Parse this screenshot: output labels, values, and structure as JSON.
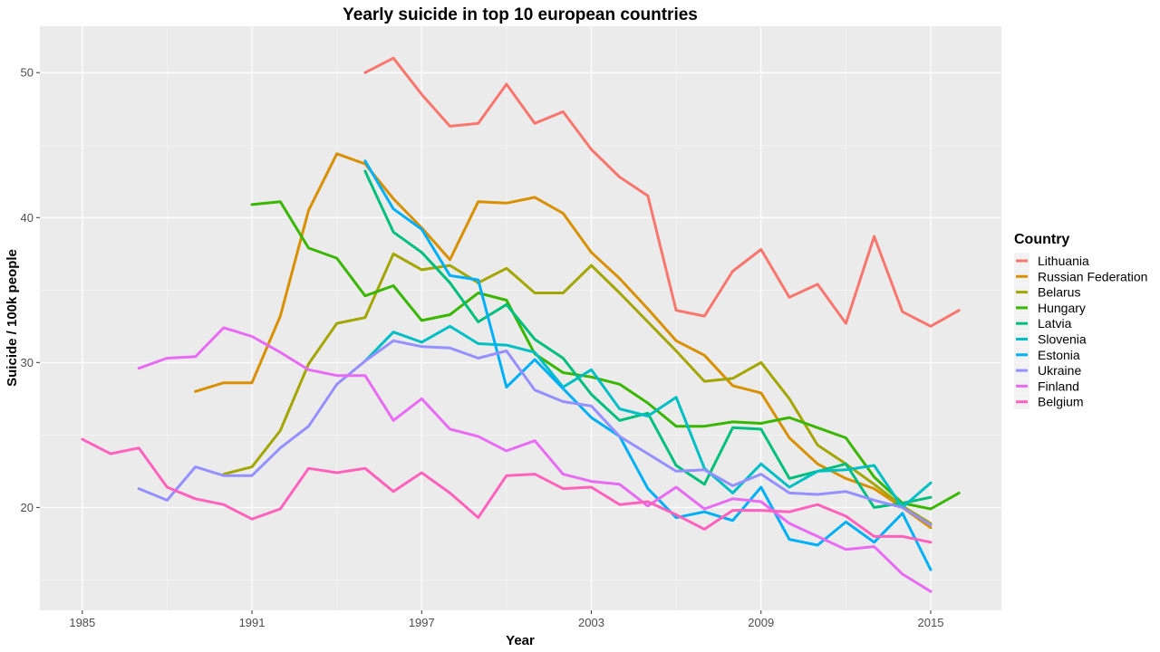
{
  "chart_data": {
    "type": "line",
    "title": "Yearly suicide in top 10 european countries",
    "xlabel": "Year",
    "ylabel": "Suicide / 100k people",
    "xlim": [
      1983.5,
      2017.5
    ],
    "ylim": [
      12.9,
      53.2
    ],
    "x_ticks": [
      1985,
      1991,
      1997,
      2003,
      2009,
      2015
    ],
    "y_ticks": [
      20,
      30,
      40,
      50
    ],
    "grid": true,
    "legend": {
      "title": "Country",
      "position": "right"
    },
    "series": [
      {
        "name": "Lithuania",
        "color": "#F8766D",
        "x": [
          1995,
          1996,
          1997,
          1998,
          1999,
          2000,
          2001,
          2002,
          2003,
          2004,
          2005,
          2006,
          2007,
          2008,
          2009,
          2010,
          2011,
          2012,
          2013,
          2014,
          2015,
          2016
        ],
        "y": [
          50.0,
          51.0,
          48.5,
          46.3,
          46.5,
          49.2,
          46.5,
          47.3,
          44.7,
          42.8,
          41.5,
          33.6,
          33.2,
          36.3,
          37.8,
          34.5,
          35.4,
          32.7,
          38.7,
          33.5,
          32.5,
          33.6
        ]
      },
      {
        "name": "Russian Federation",
        "color": "#D89000",
        "x": [
          1989,
          1990,
          1991,
          1992,
          1993,
          1994,
          1995,
          1996,
          1997,
          1998,
          1999,
          2000,
          2001,
          2002,
          2003,
          2004,
          2005,
          2006,
          2007,
          2008,
          2009,
          2010,
          2011,
          2012,
          2013,
          2014,
          2015
        ],
        "y": [
          28.0,
          28.6,
          28.6,
          33.2,
          40.5,
          44.4,
          43.7,
          41.3,
          39.3,
          37.1,
          41.1,
          41.0,
          41.4,
          40.3,
          37.6,
          35.8,
          33.7,
          31.5,
          30.5,
          28.4,
          27.9,
          24.8,
          23.0,
          22.0,
          21.3,
          20.0,
          18.6
        ]
      },
      {
        "name": "Belarus",
        "color": "#A3A500",
        "x": [
          1990,
          1991,
          1992,
          1993,
          1994,
          1995,
          1996,
          1997,
          1998,
          1999,
          2000,
          2001,
          2002,
          2003,
          2004,
          2005,
          2006,
          2007,
          2008,
          2009,
          2010,
          2011,
          2012,
          2013,
          2014,
          2015
        ],
        "y": [
          22.3,
          22.8,
          25.3,
          29.9,
          32.7,
          33.1,
          37.5,
          36.4,
          36.7,
          35.5,
          36.5,
          34.8,
          34.8,
          36.7,
          34.8,
          32.8,
          30.8,
          28.7,
          28.9,
          30.0,
          27.5,
          24.3,
          23.0,
          21.6,
          20.1,
          18.9
        ]
      },
      {
        "name": "Hungary",
        "color": "#39B600",
        "x": [
          1991,
          1992,
          1993,
          1994,
          1995,
          1996,
          1997,
          1998,
          1999,
          2000,
          2001,
          2002,
          2003,
          2004,
          2005,
          2006,
          2007,
          2008,
          2009,
          2010,
          2011,
          2012,
          2013,
          2014,
          2015,
          2016
        ],
        "y": [
          40.9,
          41.1,
          37.9,
          37.2,
          34.6,
          35.3,
          32.9,
          33.3,
          34.8,
          34.3,
          30.6,
          29.3,
          29.0,
          28.5,
          27.2,
          25.6,
          25.6,
          25.9,
          25.8,
          26.2,
          25.5,
          24.8,
          22.1,
          20.3,
          19.9,
          21.0
        ]
      },
      {
        "name": "Latvia",
        "color": "#00BF7D",
        "x": [
          1995,
          1996,
          1997,
          1998,
          1999,
          2000,
          2001,
          2002,
          2003,
          2004,
          2005,
          2006,
          2007,
          2008,
          2009,
          2010,
          2011,
          2012,
          2013,
          2014,
          2015
        ],
        "y": [
          43.2,
          39.0,
          37.6,
          35.5,
          32.8,
          34.0,
          31.6,
          30.3,
          27.8,
          26.0,
          26.5,
          22.9,
          21.6,
          25.5,
          25.4,
          22.0,
          22.5,
          23.0,
          20.0,
          20.3,
          20.7
        ]
      },
      {
        "name": "Slovenia",
        "color": "#00BFC4",
        "x": [
          1995,
          1996,
          1997,
          1998,
          1999,
          2000,
          2001,
          2002,
          2003,
          2004,
          2005,
          2006,
          2007,
          2008,
          2009,
          2010,
          2011,
          2012,
          2013,
          2014,
          2015
        ],
        "y": [
          30.1,
          32.1,
          31.4,
          32.5,
          31.3,
          31.2,
          30.7,
          28.3,
          29.5,
          26.8,
          26.3,
          27.6,
          22.7,
          21.0,
          23.0,
          21.4,
          22.5,
          22.6,
          22.9,
          20.0,
          21.7
        ]
      },
      {
        "name": "Estonia",
        "color": "#00B0F6",
        "x": [
          1995,
          1996,
          1997,
          1998,
          1999,
          2000,
          2001,
          2002,
          2003,
          2004,
          2005,
          2006,
          2007,
          2008,
          2009,
          2010,
          2011,
          2012,
          2013,
          2014,
          2015
        ],
        "y": [
          43.9,
          40.6,
          39.2,
          36.0,
          35.7,
          28.3,
          30.2,
          28.2,
          26.2,
          24.9,
          21.3,
          19.3,
          19.7,
          19.1,
          21.4,
          17.8,
          17.4,
          19.0,
          17.6,
          19.6,
          15.7
        ]
      },
      {
        "name": "Ukraine",
        "color": "#9590FF",
        "x": [
          1987,
          1988,
          1989,
          1990,
          1991,
          1992,
          1993,
          1994,
          1995,
          1996,
          1997,
          1998,
          1999,
          2000,
          2001,
          2002,
          2003,
          2004,
          2005,
          2006,
          2007,
          2008,
          2009,
          2010,
          2011,
          2012,
          2013,
          2014,
          2015
        ],
        "y": [
          21.3,
          20.5,
          22.8,
          22.2,
          22.2,
          24.1,
          25.6,
          28.5,
          30.1,
          31.5,
          31.1,
          31.0,
          30.3,
          30.8,
          28.1,
          27.3,
          27.0,
          24.9,
          23.7,
          22.5,
          22.6,
          21.5,
          22.3,
          21.0,
          20.9,
          21.1,
          20.5,
          20.0,
          18.8
        ]
      },
      {
        "name": "Finland",
        "color": "#E76BF3",
        "x": [
          1987,
          1988,
          1989,
          1990,
          1991,
          1992,
          1993,
          1994,
          1995,
          1996,
          1997,
          1998,
          1999,
          2000,
          2001,
          2002,
          2003,
          2004,
          2005,
          2006,
          2007,
          2008,
          2009,
          2010,
          2011,
          2012,
          2013,
          2014,
          2015
        ],
        "y": [
          29.6,
          30.3,
          30.4,
          32.4,
          31.8,
          30.7,
          29.5,
          29.1,
          29.1,
          26.0,
          27.5,
          25.4,
          24.9,
          23.9,
          24.6,
          22.3,
          21.8,
          21.6,
          20.1,
          21.4,
          19.9,
          20.6,
          20.4,
          18.9,
          18.0,
          17.1,
          17.3,
          15.4,
          14.2
        ]
      },
      {
        "name": "Belgium",
        "color": "#FF62BC",
        "x": [
          1985,
          1986,
          1987,
          1988,
          1989,
          1990,
          1991,
          1992,
          1993,
          1994,
          1995,
          1996,
          1997,
          1998,
          1999,
          2000,
          2001,
          2002,
          2003,
          2004,
          2005,
          2006,
          2007,
          2008,
          2009,
          2010,
          2011,
          2012,
          2013,
          2014,
          2015
        ],
        "y": [
          24.7,
          23.7,
          24.1,
          21.4,
          20.6,
          20.2,
          19.2,
          19.9,
          22.7,
          22.4,
          22.7,
          21.1,
          22.4,
          21.0,
          19.3,
          22.2,
          22.3,
          21.3,
          21.4,
          20.2,
          20.4,
          19.5,
          18.5,
          19.8,
          19.8,
          19.7,
          20.2,
          19.4,
          18.0,
          18.0,
          17.6
        ]
      }
    ]
  }
}
